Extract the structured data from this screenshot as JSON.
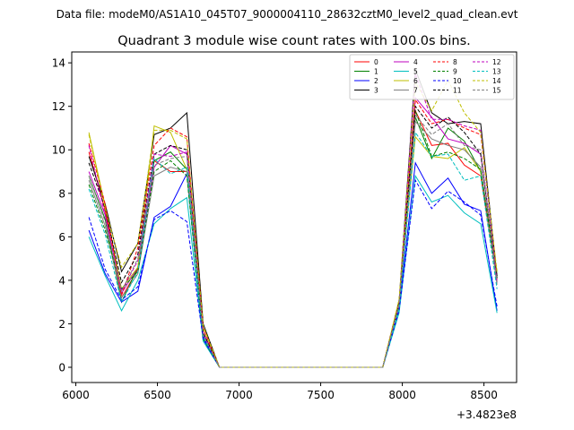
{
  "chart_data": {
    "type": "line",
    "suptitle": "Data file: modeM0/AS1A10_045T07_9000004110_28632cztM0_level2_quad_clean.evt",
    "title": "Quadrant 3 module wise count rates with 100.0s bins.",
    "xlabel": "",
    "ylabel": "",
    "x_offset_label": "+3.4823e8",
    "xlim": [
      5975,
      8700
    ],
    "ylim": [
      -0.7,
      14.5
    ],
    "xticks": [
      6000,
      6500,
      7000,
      7500,
      8000,
      8500
    ],
    "yticks": [
      0,
      2,
      4,
      6,
      8,
      10,
      12,
      14
    ],
    "grid": false,
    "legend_position": "top-right",
    "legend_columns": 4,
    "x": [
      6080,
      6180,
      6280,
      6380,
      6480,
      6580,
      6680,
      6780,
      6880,
      6980,
      7080,
      7180,
      7280,
      7380,
      7480,
      7580,
      7680,
      7780,
      7880,
      7980,
      8080,
      8180,
      8280,
      8380,
      8480,
      8580
    ],
    "series": [
      {
        "name": "0",
        "color": "#ff0000",
        "dash": "solid",
        "values": [
          9.9,
          7.2,
          3.2,
          4.5,
          9.5,
          9.0,
          9.0,
          1.6,
          0,
          0,
          0,
          0,
          0,
          0,
          0,
          0,
          0,
          0,
          0,
          3.0,
          11.8,
          10.2,
          10.3,
          9.3,
          8.8,
          4.0
        ]
      },
      {
        "name": "1",
        "color": "#008000",
        "dash": "solid",
        "values": [
          8.8,
          6.8,
          3.0,
          4.6,
          9.5,
          9.9,
          9.1,
          1.4,
          0,
          0,
          0,
          0,
          0,
          0,
          0,
          0,
          0,
          0,
          0,
          2.9,
          11.5,
          9.6,
          11.0,
          10.4,
          9.0,
          4.2
        ]
      },
      {
        "name": "2",
        "color": "#0000ff",
        "dash": "solid",
        "values": [
          6.3,
          4.3,
          3.0,
          3.5,
          6.9,
          7.4,
          8.9,
          1.4,
          0,
          0,
          0,
          0,
          0,
          0,
          0,
          0,
          0,
          0,
          0,
          2.7,
          9.4,
          8.0,
          8.7,
          7.5,
          7.2,
          2.6
        ]
      },
      {
        "name": "3",
        "color": "#000000",
        "dash": "solid",
        "values": [
          9.7,
          7.5,
          4.4,
          5.7,
          10.7,
          11.0,
          11.7,
          2.0,
          0,
          0,
          0,
          0,
          0,
          0,
          0,
          0,
          0,
          0,
          0,
          3.0,
          13.7,
          11.7,
          11.2,
          11.3,
          11.2,
          4.2
        ]
      },
      {
        "name": "4",
        "color": "#bf00bf",
        "dash": "solid",
        "values": [
          9.0,
          7.0,
          3.4,
          4.6,
          9.2,
          10.2,
          9.8,
          1.6,
          0,
          0,
          0,
          0,
          0,
          0,
          0,
          0,
          0,
          0,
          0,
          2.8,
          12.4,
          11.5,
          10.5,
          10.3,
          9.8,
          3.9
        ]
      },
      {
        "name": "5",
        "color": "#00bfbf",
        "dash": "solid",
        "values": [
          6.0,
          4.2,
          2.6,
          4.0,
          6.6,
          7.3,
          7.8,
          1.2,
          0,
          0,
          0,
          0,
          0,
          0,
          0,
          0,
          0,
          0,
          0,
          2.5,
          8.8,
          7.6,
          7.9,
          7.1,
          6.6,
          2.5
        ]
      },
      {
        "name": "6",
        "color": "#bfbf00",
        "dash": "solid",
        "values": [
          10.8,
          7.4,
          3.6,
          4.6,
          11.1,
          10.8,
          9.1,
          1.8,
          0,
          0,
          0,
          0,
          0,
          0,
          0,
          0,
          0,
          0,
          0,
          3.1,
          10.6,
          9.7,
          9.6,
          10.1,
          9.0,
          4.4
        ]
      },
      {
        "name": "7",
        "color": "#808080",
        "dash": "solid",
        "values": [
          8.6,
          6.5,
          3.2,
          4.3,
          8.8,
          9.2,
          9.0,
          1.5,
          0,
          0,
          0,
          0,
          0,
          0,
          0,
          0,
          0,
          0,
          0,
          2.9,
          11.3,
          10.5,
          10.2,
          10.0,
          9.2,
          3.8
        ]
      },
      {
        "name": "8",
        "color": "#ff0000",
        "dash": "dashed",
        "values": [
          10.3,
          7.5,
          3.3,
          5.5,
          10.2,
          11.0,
          10.6,
          1.8,
          0,
          0,
          0,
          0,
          0,
          0,
          0,
          0,
          0,
          0,
          0,
          3.0,
          12.3,
          11.2,
          11.4,
          11.0,
          10.7,
          4.3
        ]
      },
      {
        "name": "9",
        "color": "#008000",
        "dash": "dashed",
        "values": [
          8.4,
          6.3,
          3.6,
          4.4,
          9.0,
          9.5,
          8.8,
          1.3,
          0,
          0,
          0,
          0,
          0,
          0,
          0,
          0,
          0,
          0,
          0,
          2.8,
          11.8,
          9.7,
          9.9,
          9.6,
          9.1,
          4.1
        ]
      },
      {
        "name": "10",
        "color": "#0000ff",
        "dash": "dashed",
        "values": [
          6.9,
          4.5,
          3.1,
          3.7,
          6.8,
          7.2,
          6.7,
          1.3,
          0,
          0,
          0,
          0,
          0,
          0,
          0,
          0,
          0,
          0,
          0,
          2.6,
          8.6,
          7.3,
          8.1,
          7.6,
          7.0,
          2.8
        ]
      },
      {
        "name": "11",
        "color": "#000000",
        "dash": "dashed",
        "values": [
          9.4,
          7.3,
          3.9,
          5.2,
          9.8,
          10.2,
          10.0,
          1.6,
          0,
          0,
          0,
          0,
          0,
          0,
          0,
          0,
          0,
          0,
          0,
          3.0,
          12.0,
          11.0,
          11.5,
          10.8,
          9.8,
          4.1
        ]
      },
      {
        "name": "12",
        "color": "#bf00bf",
        "dash": "dashed",
        "values": [
          10.2,
          7.0,
          3.5,
          4.9,
          9.8,
          9.7,
          9.9,
          1.5,
          0,
          0,
          0,
          0,
          0,
          0,
          0,
          0,
          0,
          0,
          0,
          2.9,
          13.5,
          11.4,
          11.4,
          11.1,
          10.9,
          3.9
        ]
      },
      {
        "name": "13",
        "color": "#00bfbf",
        "dash": "dashed",
        "values": [
          8.2,
          6.1,
          3.0,
          4.4,
          9.6,
          8.9,
          9.2,
          1.4,
          0,
          0,
          0,
          0,
          0,
          0,
          0,
          0,
          0,
          0,
          0,
          2.7,
          10.8,
          9.7,
          9.8,
          8.6,
          8.8,
          3.6
        ]
      },
      {
        "name": "14",
        "color": "#bfbf00",
        "dash": "dashed",
        "values": [
          10.7,
          7.3,
          4.6,
          5.7,
          10.9,
          10.9,
          10.5,
          1.9,
          0,
          0,
          0,
          0,
          0,
          0,
          0,
          0,
          0,
          0,
          0,
          3.1,
          13.1,
          11.8,
          13.2,
          11.7,
          10.8,
          4.4
        ]
      },
      {
        "name": "15",
        "color": "#808080",
        "dash": "dashed",
        "values": [
          8.8,
          6.7,
          3.5,
          5.0,
          9.3,
          9.6,
          9.7,
          1.5,
          0,
          0,
          0,
          0,
          0,
          0,
          0,
          0,
          0,
          0,
          0,
          2.9,
          11.6,
          10.7,
          11.2,
          10.2,
          10.0,
          3.9
        ]
      }
    ]
  }
}
